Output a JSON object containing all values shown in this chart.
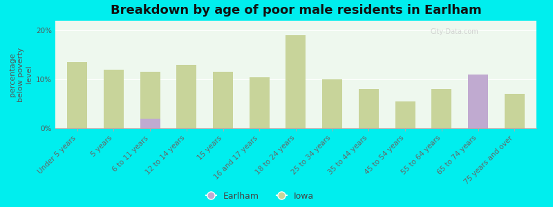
{
  "title": "Breakdown by age of poor male residents in Earlham",
  "ylabel": "percentage\nbelow poverty\nlevel",
  "categories": [
    "Under 5 years",
    "5 years",
    "6 to 11 years",
    "12 to 14 years",
    "15 years",
    "16 and 17 years",
    "18 to 24 years",
    "25 to 34 years",
    "35 to 44 years",
    "45 to 54 years",
    "55 to 64 years",
    "65 to 74 years",
    "75 years and over"
  ],
  "iowa_values": [
    13.5,
    12.0,
    11.5,
    13.0,
    11.5,
    10.5,
    19.0,
    10.0,
    8.0,
    5.5,
    8.0,
    7.0,
    7.0
  ],
  "earlham_values": [
    0,
    0,
    2.0,
    0,
    0,
    0,
    0,
    0,
    0,
    0,
    0,
    11.0,
    0
  ],
  "iowa_color": "#c8d49a",
  "earlham_color": "#c0aad0",
  "background_color": "#eef8ee",
  "outer_background": "#00eeee",
  "ylim": [
    0,
    22
  ],
  "ytick_labels": [
    "0%",
    "10%",
    "20%"
  ],
  "ytick_values": [
    0,
    10,
    20
  ],
  "legend_labels": [
    "Earlham",
    "Iowa"
  ],
  "title_fontsize": 13,
  "axis_label_fontsize": 8,
  "tick_fontsize": 7.5
}
